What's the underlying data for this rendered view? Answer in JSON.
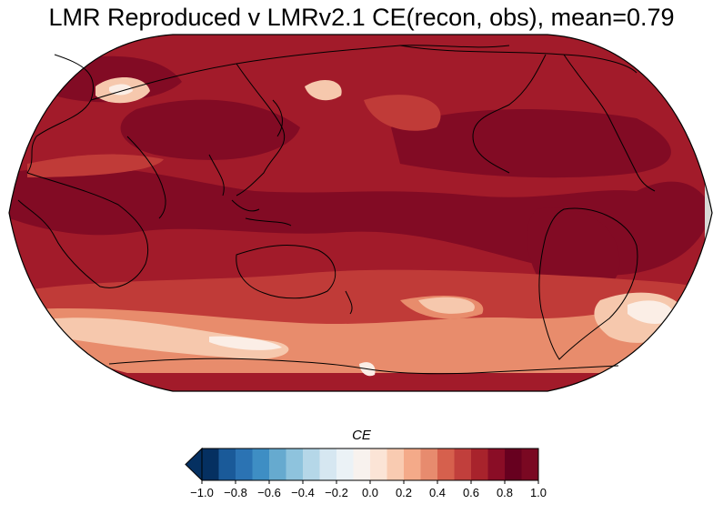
{
  "title": "LMR Reproduced v LMRv2.1 CE(recon, obs), mean=0.79",
  "colorbar": {
    "label": "CE",
    "vmin": -1.0,
    "vmax": 1.0,
    "step": 0.1,
    "extend": "min",
    "ticks": [
      "−1.0",
      "−0.8",
      "−0.6",
      "−0.4",
      "−0.2",
      "0.0",
      "0.2",
      "0.4",
      "0.6",
      "0.8",
      "1.0"
    ],
    "colors": [
      "#053061",
      "#1a5a99",
      "#2b73b3",
      "#3e8ec4",
      "#66aacf",
      "#8ec3dd",
      "#b5d7e8",
      "#d6e7f1",
      "#ebf2f6",
      "#f8f2ee",
      "#fbe4d6",
      "#f9cbb1",
      "#f4aa89",
      "#e78b6e",
      "#d6604d",
      "#c13f3c",
      "#a8232c",
      "#8a0d26",
      "#67001f",
      "#7a0822"
    ]
  },
  "map": {
    "projection": "Robinson",
    "colors": {
      "ocean_fill": "#a21b2a",
      "dark": "#820b24",
      "medium": "#c03b38",
      "light": "#e88c6c",
      "pale": "#f6c8ad",
      "white": "#fbeee6",
      "nodata": "#d9d9d6",
      "coast": "#000000"
    }
  }
}
